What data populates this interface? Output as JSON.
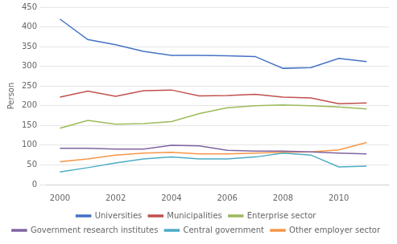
{
  "chart_data": {
    "type": "line",
    "x": [
      2000,
      2001,
      2002,
      2003,
      2004,
      2005,
      2006,
      2007,
      2008,
      2009,
      2010,
      2011
    ],
    "series": [
      {
        "name": "Universities",
        "color": "#4472C4",
        "values": [
          420,
          368,
          355,
          338,
          328,
          328,
          327,
          325,
          295,
          297,
          320,
          312
        ]
      },
      {
        "name": "Municipalities",
        "color": "#C0504D",
        "values": [
          222,
          237,
          224,
          238,
          240,
          225,
          226,
          229,
          222,
          220,
          205,
          207
        ]
      },
      {
        "name": "Enterprise sector",
        "color": "#9BBB59",
        "values": [
          143,
          163,
          153,
          155,
          160,
          180,
          195,
          200,
          202,
          200,
          197,
          192
        ]
      },
      {
        "name": "Government research institutes",
        "color": "#8064A2",
        "values": [
          92,
          92,
          90,
          90,
          100,
          98,
          87,
          85,
          85,
          83,
          80,
          78
        ]
      },
      {
        "name": "Central government",
        "color": "#4BACC6",
        "values": [
          32,
          43,
          55,
          65,
          70,
          65,
          65,
          70,
          80,
          75,
          45,
          47
        ]
      },
      {
        "name": "Other employer sector",
        "color": "#F79646",
        "values": [
          58,
          65,
          75,
          80,
          82,
          78,
          78,
          80,
          82,
          83,
          88,
          107
        ]
      }
    ],
    "ylabel": "Person",
    "xlim": [
      1999.5,
      2011.8
    ],
    "xticks": [
      2000,
      2002,
      2004,
      2006,
      2008,
      2010
    ],
    "ylim": [
      0,
      450
    ],
    "yticks": [
      0,
      50,
      100,
      150,
      200,
      250,
      300,
      350,
      400,
      450
    ],
    "grid": "y",
    "legend": "bottom"
  }
}
